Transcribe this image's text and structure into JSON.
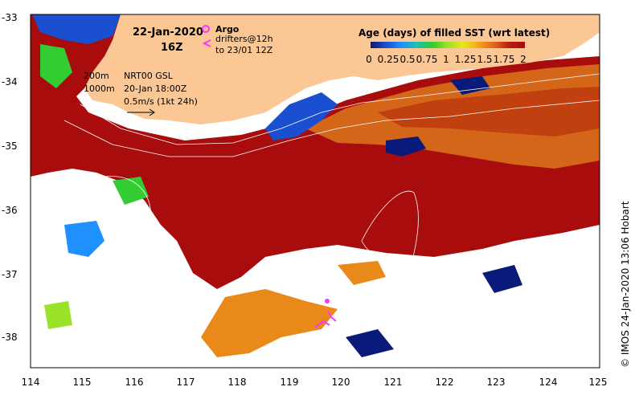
{
  "map": {
    "title_date": "22-Jan-2020",
    "title_time": "16Z",
    "argo_label": "Argo",
    "drifters_label": "drifters@12h",
    "drifters_range": "to 23/01 12Z",
    "contour_200": "200m",
    "contour_1000": "1000m",
    "nrt_label": "NRT00 GSL",
    "nrt_time": "20-Jan 18:00Z",
    "velocity_scale": "0.5m/s (1kt 24h)",
    "credit": "© IMOS 24-Jan-2020 13:06 Hobart",
    "colors": {
      "land": "#fbc795",
      "ocean_missing": "#ffffff",
      "age_old": "#a80c0c",
      "age_new": "#0a1a7a",
      "argo_marker": "#ff33ff",
      "drifter_marker": "#ff33ff"
    }
  },
  "colorbar": {
    "title": "Age (days) of filled SST (wrt latest)",
    "tick_labels": [
      "0",
      "0.25",
      "0.5",
      "0.75",
      "1",
      "1.25",
      "1.5",
      "1.75",
      "2"
    ],
    "range": [
      0,
      2
    ],
    "colors": [
      "#0a1a7a",
      "#1a4fd0",
      "#1e90ff",
      "#22c0b0",
      "#33cc33",
      "#9be22a",
      "#e8e81a",
      "#f5a31a",
      "#e0661a",
      "#b52010",
      "#a80c0c"
    ]
  },
  "axes": {
    "x_ticks": [
      "114",
      "115",
      "116",
      "117",
      "118",
      "119",
      "120",
      "121",
      "122",
      "123",
      "124",
      "125"
    ],
    "y_ticks": [
      "-33",
      "-34",
      "-35",
      "-36",
      "-37",
      "-38"
    ],
    "x_range": [
      114,
      125
    ],
    "y_range": [
      -38.5,
      -33
    ]
  }
}
